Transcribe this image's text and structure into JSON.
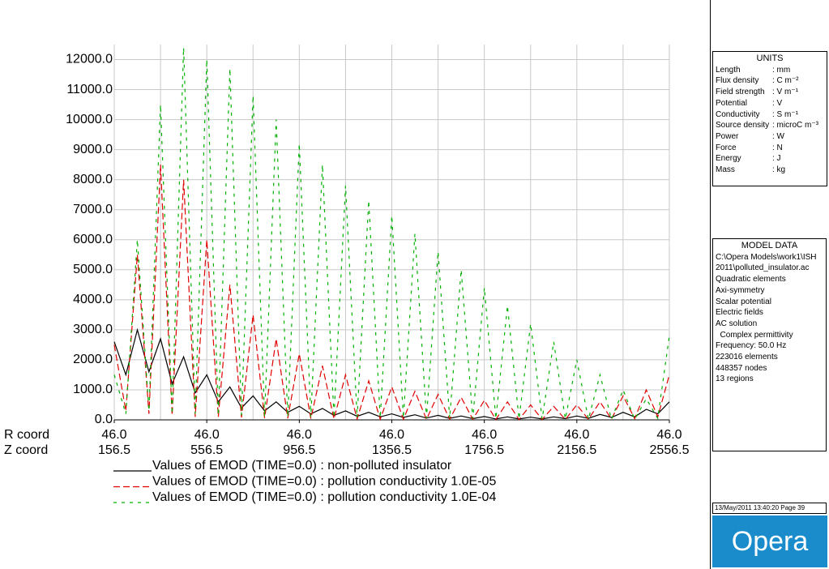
{
  "chart_data": {
    "type": "line",
    "x_axis_rows": [
      "R coord",
      "Z coord"
    ],
    "r_coord_labels": [
      "46.0",
      "46.0",
      "46.0",
      "46.0",
      "46.0",
      "46.0",
      "46.0"
    ],
    "x": [
      156.5,
      206.5,
      256.5,
      306.5,
      356.5,
      406.5,
      456.5,
      506.5,
      556.5,
      606.5,
      656.5,
      706.5,
      756.5,
      806.5,
      856.5,
      906.5,
      956.5,
      1006.5,
      1056.5,
      1106.5,
      1156.5,
      1206.5,
      1256.5,
      1306.5,
      1356.5,
      1406.5,
      1456.5,
      1506.5,
      1556.5,
      1606.5,
      1656.5,
      1706.5,
      1756.5,
      1806.5,
      1856.5,
      1906.5,
      1956.5,
      2006.5,
      2056.5,
      2106.5,
      2156.5,
      2206.5,
      2256.5,
      2306.5,
      2356.5,
      2406.5,
      2456.5,
      2506.5,
      2556.5
    ],
    "series": [
      {
        "name": "Values of EMOD (TIME=0.0) : non-polluted insulator",
        "color": "#000000",
        "dash": "none",
        "values": [
          2600,
          1500,
          3000,
          1600,
          2700,
          1200,
          2100,
          900,
          1500,
          600,
          1100,
          400,
          800,
          300,
          600,
          250,
          450,
          200,
          380,
          150,
          300,
          120,
          250,
          100,
          200,
          80,
          170,
          60,
          150,
          50,
          130,
          40,
          110,
          30,
          100,
          30,
          90,
          30,
          100,
          40,
          130,
          50,
          180,
          80,
          250,
          100,
          350,
          200,
          600
        ]
      },
      {
        "name": "Values of EMOD (TIME=0.0) : pollution conductivity 1.0E-05",
        "color": "#e00000",
        "dash": "8 4",
        "values": [
          2500,
          300,
          5500,
          200,
          8500,
          150,
          8000,
          100,
          6000,
          100,
          4500,
          80,
          3500,
          60,
          2700,
          50,
          2200,
          40,
          1800,
          30,
          1500,
          30,
          1300,
          20,
          1100,
          20,
          950,
          20,
          850,
          20,
          750,
          20,
          650,
          10,
          600,
          10,
          500,
          10,
          450,
          10,
          500,
          20,
          600,
          30,
          800,
          40,
          1000,
          100,
          1500
        ]
      },
      {
        "name": "Values of EMOD (TIME=0.0) : pollution conductivity 1.0E-04",
        "color": "#00b000",
        "dash": "4 6",
        "values": [
          1500,
          200,
          6000,
          300,
          10500,
          200,
          12400,
          200,
          12000,
          150,
          11700,
          150,
          10800,
          100,
          10000,
          100,
          9200,
          100,
          8500,
          80,
          7800,
          80,
          7300,
          60,
          6800,
          60,
          6200,
          50,
          5600,
          50,
          5000,
          40,
          4400,
          40,
          3800,
          30,
          3200,
          30,
          2600,
          30,
          2000,
          20,
          1500,
          20,
          1000,
          20,
          700,
          50,
          2800
        ]
      }
    ],
    "xlim": [
      156.5,
      2556.5
    ],
    "xticks": [
      156.5,
      556.5,
      956.5,
      1356.5,
      1756.5,
      2156.5,
      2556.5
    ],
    "xgrid": [
      156.5,
      356.5,
      556.5,
      756.5,
      956.5,
      1156.5,
      1356.5,
      1556.5,
      1756.5,
      1956.5,
      2156.5,
      2356.5,
      2556.5
    ],
    "ylim": [
      0,
      12500
    ],
    "yticks": [
      {
        "value": 0,
        "label": "0.0"
      },
      {
        "value": 1000,
        "label": "1000.0"
      },
      {
        "value": 2000,
        "label": "2000.0"
      },
      {
        "value": 3000,
        "label": "3000.0"
      },
      {
        "value": 4000,
        "label": "4000.0"
      },
      {
        "value": 5000,
        "label": "5000.0"
      },
      {
        "value": 6000,
        "label": "6000.0"
      },
      {
        "value": 7000,
        "label": "7000.0"
      },
      {
        "value": 8000,
        "label": "8000.0"
      },
      {
        "value": 9000,
        "label": "9000.0"
      },
      {
        "value": 10000,
        "label": "10000.0"
      },
      {
        "value": 11000,
        "label": "11000.0"
      },
      {
        "value": 12000,
        "label": "12000.0"
      }
    ],
    "grid": true
  },
  "units_panel": {
    "title": "UNITS",
    "rows": [
      [
        "Length",
        ": mm"
      ],
      [
        "Flux density",
        ": C m⁻²"
      ],
      [
        "Field strength",
        ": V m⁻¹"
      ],
      [
        "Potential",
        ": V"
      ],
      [
        "Conductivity",
        ": S m⁻¹"
      ],
      [
        "Source density",
        ": microC m⁻³"
      ],
      [
        "Power",
        ": W"
      ],
      [
        "Force",
        ": N"
      ],
      [
        "Energy",
        ": J"
      ],
      [
        "Mass",
        ": kg"
      ]
    ]
  },
  "model_panel": {
    "title": "MODEL DATA",
    "lines": [
      "C:\\Opera Models\\work1\\ISH",
      "2011\\polluted_insulator.ac",
      "Quadratic elements",
      "Axi-symmetry",
      "Scalar potential",
      "Electric fields",
      "AC solution",
      "  Complex permittivity",
      "Frequency: 50.0 Hz",
      "223016 elements",
      "448357 nodes",
      "13 regions"
    ]
  },
  "timestamp": "13/May/2011 13:40:20 Page 39",
  "logo": "Opera"
}
